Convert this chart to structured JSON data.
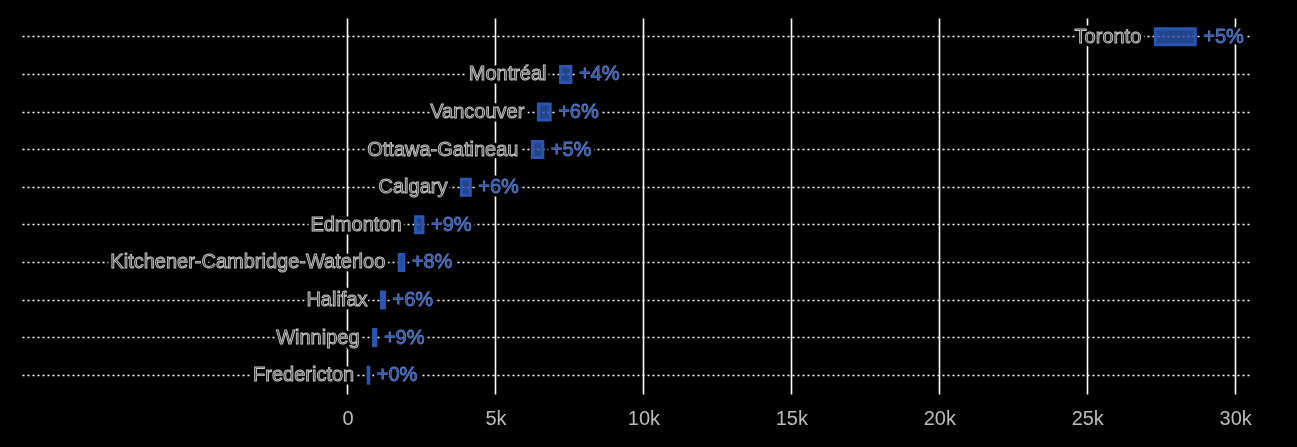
{
  "chart_data": {
    "type": "bar",
    "orientation": "horizontal",
    "categories": [
      "Toronto",
      "Montréal",
      "Vancouver",
      "Ottawa-Gatineau",
      "Calgary",
      "Edmonton",
      "Kitchener-Cambridge-Waterloo",
      "Halifax",
      "Winnipeg",
      "Fredericton"
    ],
    "base": [
      27300,
      7200,
      6450,
      6250,
      3850,
      2300,
      1750,
      1150,
      880,
      700
    ],
    "values": [
      1350,
      350,
      400,
      350,
      300,
      250,
      150,
      100,
      80,
      20
    ],
    "annotations": [
      {
        "text": "+5%",
        "x": 28650,
        "y": "Toronto"
      },
      {
        "text": "+4%",
        "x": 7550,
        "y": "Montréal"
      },
      {
        "text": "+6%",
        "x": 6850,
        "y": "Vancouver"
      },
      {
        "text": "+5%",
        "x": 6600,
        "y": "Ottawa-Gatineau"
      },
      {
        "text": "+6%",
        "x": 4150,
        "y": "Calgary"
      },
      {
        "text": "+9%",
        "x": 2550,
        "y": "Edmonton"
      },
      {
        "text": "+8%",
        "x": 1900,
        "y": "Kitchener-Cambridge-Waterloo"
      },
      {
        "text": "+6%",
        "x": 1250,
        "y": "Halifax"
      },
      {
        "text": "+9%",
        "x": 960,
        "y": "Winnipeg"
      },
      {
        "text": "+0%",
        "x": 720,
        "y": "Fredericton"
      }
    ],
    "color": "#2a56b0",
    "xlim": [
      -11000,
      30500
    ],
    "xticks": [
      {
        "value": 0,
        "label": "0"
      },
      {
        "value": 5000,
        "label": "5k"
      },
      {
        "value": 10000,
        "label": "10k"
      },
      {
        "value": 15000,
        "label": "15k"
      },
      {
        "value": 20000,
        "label": "20k"
      },
      {
        "value": 25000,
        "label": "25k"
      },
      {
        "value": 30000,
        "label": "30k"
      }
    ],
    "grid": true
  }
}
